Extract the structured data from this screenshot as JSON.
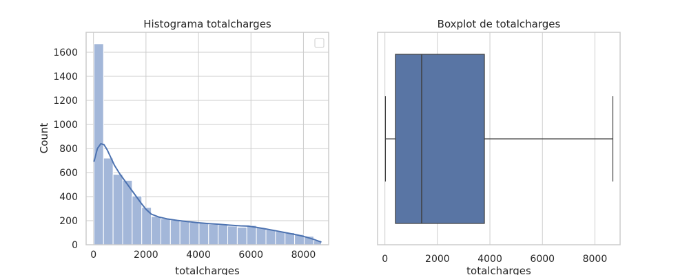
{
  "colors": {
    "hist_fill": "#a3b7d9",
    "hist_edge": "#ffffff",
    "kde_line": "#4c72b0",
    "box_fill": "#5975a4",
    "box_line": "#3f3f3f",
    "grid": "#cccccc",
    "spine": "#cccccc",
    "text": "#262626"
  },
  "chart_data": [
    {
      "type": "histogram",
      "title": "Histograma totalcharges",
      "xlabel": "totalcharges",
      "ylabel": "Count",
      "xlim": [
        -280,
        8960
      ],
      "ylim": [
        0,
        1600
      ],
      "xticks": [
        0,
        2000,
        4000,
        6000,
        8000
      ],
      "xtick_labels": [
        "0",
        "2000",
        "4000",
        "6000",
        "8000"
      ],
      "yticks": [
        0,
        200,
        400,
        600,
        800,
        1000,
        1200,
        1400,
        1600
      ],
      "ytick_labels": [
        "0",
        "200",
        "400",
        "600",
        "800",
        "1000",
        "1200",
        "1400",
        "1600"
      ],
      "grid": true,
      "legend": "top-right (empty)",
      "bins": [
        {
          "x0": 19,
          "x1": 383,
          "count": 1670
        },
        {
          "x0": 383,
          "x1": 747,
          "count": 720
        },
        {
          "x0": 747,
          "x1": 1111,
          "count": 585
        },
        {
          "x0": 1111,
          "x1": 1475,
          "count": 535
        },
        {
          "x0": 1475,
          "x1": 1839,
          "count": 405
        },
        {
          "x0": 1839,
          "x1": 2203,
          "count": 310
        },
        {
          "x0": 2203,
          "x1": 2567,
          "count": 235
        },
        {
          "x0": 2567,
          "x1": 2931,
          "count": 215
        },
        {
          "x0": 2931,
          "x1": 3295,
          "count": 205
        },
        {
          "x0": 3295,
          "x1": 3659,
          "count": 195
        },
        {
          "x0": 3659,
          "x1": 4023,
          "count": 185
        },
        {
          "x0": 4023,
          "x1": 4387,
          "count": 185
        },
        {
          "x0": 4387,
          "x1": 4751,
          "count": 170
        },
        {
          "x0": 4751,
          "x1": 5115,
          "count": 165
        },
        {
          "x0": 5115,
          "x1": 5479,
          "count": 155
        },
        {
          "x0": 5479,
          "x1": 5843,
          "count": 145
        },
        {
          "x0": 5843,
          "x1": 6207,
          "count": 160
        },
        {
          "x0": 6207,
          "x1": 6571,
          "count": 140
        },
        {
          "x0": 6571,
          "x1": 6935,
          "count": 125
        },
        {
          "x0": 6935,
          "x1": 7299,
          "count": 110
        },
        {
          "x0": 7299,
          "x1": 7663,
          "count": 100
        },
        {
          "x0": 7663,
          "x1": 8027,
          "count": 85
        },
        {
          "x0": 8027,
          "x1": 8391,
          "count": 70
        },
        {
          "x0": 8391,
          "x1": 8684,
          "count": 35
        }
      ],
      "kde": {
        "x": [
          19,
          150,
          280,
          400,
          520,
          650,
          800,
          1000,
          1200,
          1400,
          1600,
          1800,
          2000,
          2200,
          2500,
          2800,
          3200,
          3600,
          4000,
          4400,
          4800,
          5200,
          5600,
          5900,
          6200,
          6600,
          7000,
          7400,
          7800,
          8100,
          8400,
          8684
        ],
        "y": [
          690,
          800,
          840,
          832,
          790,
          730,
          660,
          590,
          530,
          470,
          410,
          350,
          295,
          255,
          230,
          215,
          202,
          192,
          183,
          176,
          170,
          163,
          157,
          155,
          145,
          130,
          114,
          97,
          80,
          64,
          44,
          22
        ]
      }
    },
    {
      "type": "boxplot",
      "title": "Boxplot de totalcharges",
      "xlabel": "totalcharges",
      "xlim": [
        -280,
        8960
      ],
      "xticks": [
        0,
        2000,
        4000,
        6000,
        8000
      ],
      "xtick_labels": [
        "0",
        "2000",
        "4000",
        "6000",
        "8000"
      ],
      "grid": true,
      "whisker_low": 19,
      "q1": 400,
      "median": 1400,
      "q3": 3790,
      "whisker_high": 8684
    }
  ]
}
